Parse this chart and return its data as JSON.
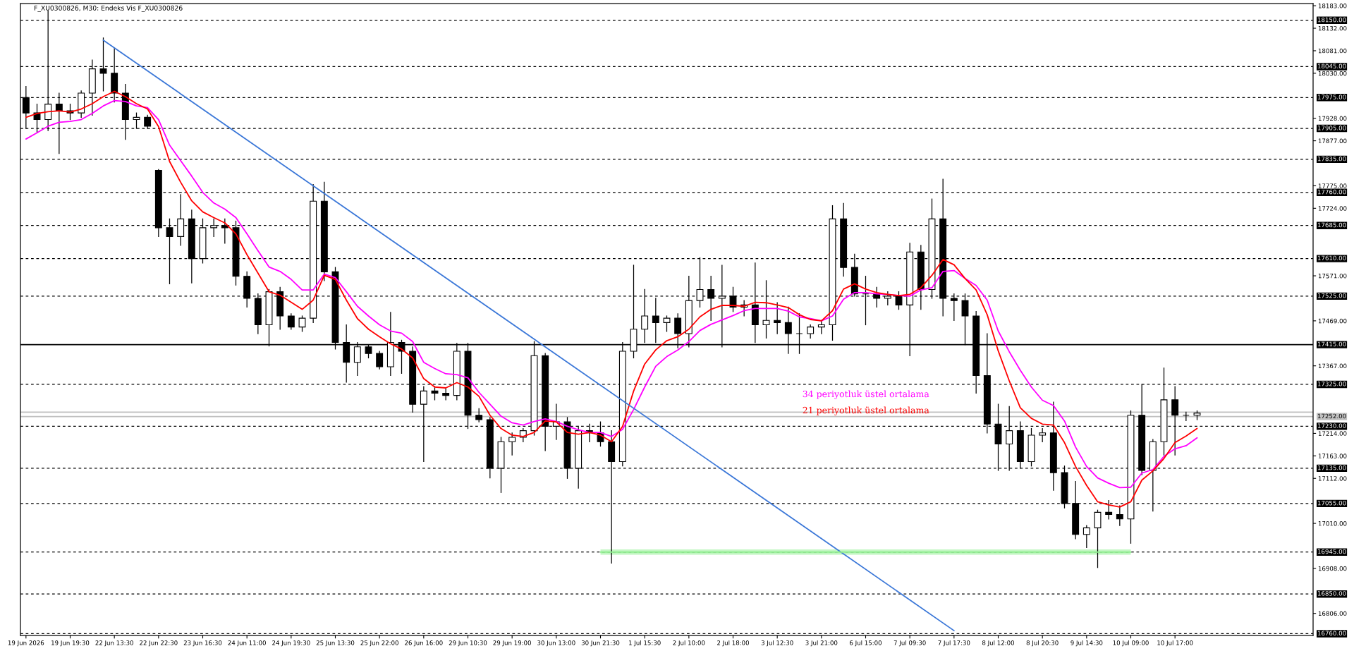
{
  "chart_data": {
    "type": "candlestick",
    "title": "F_XU0300826, M30: Endeks Vis F_XU0300826",
    "color": "#000000",
    "categories": [
      "19 Jun 2026",
      null,
      null,
      null,
      "19 Jun 19:30",
      null,
      null,
      null,
      "22 Jun 13:30",
      null,
      null,
      null,
      "22 Jun 22:30",
      null,
      null,
      null,
      "23 Jun 16:30",
      null,
      null,
      null,
      "24 Jun 11:00",
      null,
      null,
      null,
      "24 Jun 19:30",
      null,
      null,
      null,
      "25 Jun 13:30",
      null,
      null,
      null,
      "25 Jun 22:00",
      null,
      null,
      null,
      "26 Jun 16:00",
      null,
      null,
      null,
      "29 Jun 10:30",
      null,
      null,
      null,
      "29 Jun 19:00",
      null,
      null,
      null,
      "30 Jun 13:00",
      null,
      null,
      null,
      "30 Jun 21:30",
      null,
      null,
      null,
      "1 Jul 15:30",
      null,
      null,
      null,
      "2 Jul 10:00",
      null,
      null,
      null,
      "2 Jul 18:00",
      null,
      null,
      null,
      "3 Jul 12:30",
      null,
      null,
      null,
      "3 Jul 21:00",
      null,
      null,
      null,
      "6 Jul 15:00",
      null,
      null,
      null,
      "7 Jul 09:30",
      null,
      null,
      null,
      "7 Jul 17:30",
      null,
      null,
      null,
      "8 Jul 12:00",
      null,
      null,
      null,
      "8 Jul 20:30",
      null,
      null,
      null,
      "9 Jul 14:30",
      null,
      null,
      null,
      "10 Jul 09:00",
      null,
      null,
      null,
      "10 Jul 17:00",
      null,
      null,
      null,
      null,
      null,
      null,
      null,
      null,
      null,
      null,
      null,
      null
    ],
    "ohlc": [
      [
        17975,
        18000,
        17905,
        17940
      ],
      [
        17940,
        17960,
        17895,
        17925
      ],
      [
        17925,
        18172,
        17900,
        17960
      ],
      [
        17960,
        17985,
        17848,
        17945
      ],
      [
        17945,
        17960,
        17925,
        17940
      ],
      [
        17940,
        17990,
        17930,
        17985
      ],
      [
        17985,
        18060,
        17935,
        18040
      ],
      [
        18040,
        18110,
        17990,
        18030
      ],
      [
        18030,
        18087,
        17965,
        17985
      ],
      [
        17985,
        18005,
        17880,
        17925
      ],
      [
        17925,
        17940,
        17905,
        17930
      ],
      [
        17930,
        17935,
        17905,
        17910
      ],
      [
        17810,
        17812,
        17660,
        17680
      ],
      [
        17680,
        17700,
        17553,
        17660
      ],
      [
        17660,
        17755,
        17640,
        17700
      ],
      [
        17700,
        17720,
        17555,
        17610
      ],
      [
        17610,
        17700,
        17600,
        17680
      ],
      [
        17680,
        17700,
        17660,
        17685
      ],
      [
        17685,
        17700,
        17645,
        17680
      ],
      [
        17680,
        17695,
        17550,
        17570
      ],
      [
        17570,
        17580,
        17500,
        17520
      ],
      [
        17520,
        17530,
        17440,
        17460
      ],
      [
        17460,
        17540,
        17412,
        17535
      ],
      [
        17535,
        17545,
        17450,
        17480
      ],
      [
        17480,
        17485,
        17450,
        17455
      ],
      [
        17455,
        17480,
        17445,
        17475
      ],
      [
        17475,
        17778,
        17465,
        17740
      ],
      [
        17740,
        17783,
        17560,
        17580
      ],
      [
        17580,
        17590,
        17405,
        17420
      ],
      [
        17420,
        17460,
        17330,
        17375
      ],
      [
        17375,
        17420,
        17345,
        17410
      ],
      [
        17410,
        17415,
        17385,
        17395
      ],
      [
        17395,
        17400,
        17360,
        17365
      ],
      [
        17365,
        17488,
        17345,
        17420
      ],
      [
        17420,
        17425,
        17350,
        17400
      ],
      [
        17400,
        17410,
        17262,
        17280
      ],
      [
        17280,
        17320,
        17150,
        17310
      ],
      [
        17310,
        17320,
        17290,
        17305
      ],
      [
        17305,
        17315,
        17290,
        17300
      ],
      [
        17300,
        17418,
        17290,
        17400
      ],
      [
        17400,
        17418,
        17225,
        17255
      ],
      [
        17255,
        17270,
        17240,
        17245
      ],
      [
        17245,
        17250,
        17113,
        17135
      ],
      [
        17135,
        17205,
        17080,
        17195
      ],
      [
        17195,
        17215,
        17165,
        17205
      ],
      [
        17205,
        17225,
        17195,
        17220
      ],
      [
        17220,
        17422,
        17210,
        17390
      ],
      [
        17390,
        17395,
        17175,
        17230
      ],
      [
        17230,
        17280,
        17200,
        17240
      ],
      [
        17240,
        17250,
        17112,
        17135
      ],
      [
        17135,
        17230,
        17090,
        17220
      ],
      [
        17220,
        17235,
        17195,
        17215
      ],
      [
        17215,
        17240,
        17185,
        17195
      ],
      [
        17195,
        17220,
        16920,
        17150
      ],
      [
        17150,
        17420,
        17140,
        17400
      ],
      [
        17400,
        17595,
        17385,
        17450
      ],
      [
        17450,
        17540,
        17420,
        17480
      ],
      [
        17480,
        17520,
        17420,
        17465
      ],
      [
        17465,
        17480,
        17445,
        17475
      ],
      [
        17475,
        17485,
        17408,
        17440
      ],
      [
        17440,
        17570,
        17410,
        17515
      ],
      [
        17515,
        17612,
        17500,
        17540
      ],
      [
        17540,
        17570,
        17470,
        17520
      ],
      [
        17520,
        17595,
        17410,
        17525
      ],
      [
        17525,
        17545,
        17490,
        17500
      ],
      [
        17500,
        17515,
        17480,
        17505
      ],
      [
        17505,
        17600,
        17420,
        17460
      ],
      [
        17460,
        17560,
        17430,
        17470
      ],
      [
        17470,
        17510,
        17440,
        17465
      ],
      [
        17465,
        17500,
        17395,
        17440
      ],
      [
        17440,
        17485,
        17395,
        17440
      ],
      [
        17440,
        17460,
        17430,
        17455
      ],
      [
        17455,
        17470,
        17440,
        17460
      ],
      [
        17460,
        17730,
        17425,
        17700
      ],
      [
        17700,
        17735,
        17570,
        17590
      ],
      [
        17590,
        17620,
        17525,
        17530
      ],
      [
        17530,
        17570,
        17460,
        17530
      ],
      [
        17530,
        17545,
        17500,
        17520
      ],
      [
        17520,
        17535,
        17505,
        17525
      ],
      [
        17525,
        17535,
        17495,
        17505
      ],
      [
        17505,
        17645,
        17390,
        17625
      ],
      [
        17625,
        17640,
        17495,
        17540
      ],
      [
        17540,
        17745,
        17520,
        17700
      ],
      [
        17700,
        17790,
        17480,
        17520
      ],
      [
        17520,
        17530,
        17470,
        17515
      ],
      [
        17515,
        17530,
        17415,
        17480
      ],
      [
        17480,
        17490,
        17305,
        17345
      ],
      [
        17345,
        17440,
        17215,
        17235
      ],
      [
        17235,
        17280,
        17130,
        17190
      ],
      [
        17190,
        17275,
        17130,
        17220
      ],
      [
        17220,
        17240,
        17135,
        17150
      ],
      [
        17150,
        17225,
        17140,
        17210
      ],
      [
        17210,
        17225,
        17195,
        17215
      ],
      [
        17215,
        17285,
        17085,
        17125
      ],
      [
        17125,
        17140,
        17045,
        17055
      ],
      [
        17055,
        17105,
        16975,
        16985
      ],
      [
        16985,
        17005,
        16955,
        17000
      ],
      [
        17000,
        17040,
        16910,
        17035
      ],
      [
        17035,
        17062,
        17020,
        17030
      ],
      [
        17030,
        17050,
        17005,
        17020
      ],
      [
        17020,
        17265,
        16965,
        17255
      ],
      [
        17255,
        17325,
        17120,
        17130
      ],
      [
        17130,
        17200,
        17038,
        17195
      ],
      [
        17195,
        17362,
        17165,
        17290
      ],
      [
        17290,
        17320,
        17165,
        17255
      ],
      [
        17255,
        17262,
        17243,
        17255
      ],
      [
        17255,
        17265,
        17245,
        17260
      ],
      null,
      null,
      null,
      null,
      null,
      null,
      null,
      null,
      null,
      null
    ],
    "series": [
      {
        "name": "34 periyotluk üstel ortalama",
        "type": "line",
        "color": "#ff00ff",
        "values": [
          17881,
          17895,
          17910,
          17919,
          17921,
          17925,
          17939,
          17956,
          17968,
          17966,
          17956,
          17952,
          17925,
          17867,
          17832,
          17797,
          17760,
          17736,
          17722,
          17703,
          17666,
          17628,
          17591,
          17581,
          17563,
          17539,
          17539,
          17575,
          17567,
          17535,
          17502,
          17480,
          17460,
          17446,
          17441,
          17422,
          17375,
          17361,
          17349,
          17347,
          17340,
          17307,
          17280,
          17253,
          17238,
          17233,
          17241,
          17247,
          17241,
          17230,
          17222,
          17216,
          17216,
          17207,
          17223,
          17268,
          17319,
          17366,
          17388,
          17403,
          17422,
          17447,
          17461,
          17471,
          17481,
          17492,
          17497,
          17497,
          17497,
          17491,
          17478,
          17474,
          17469,
          17480,
          17518,
          17533,
          17533,
          17530,
          17529,
          17526,
          17525,
          17539,
          17544,
          17581,
          17583,
          17565,
          17549,
          17516,
          17446,
          17399,
          17357,
          17319,
          17289,
          17277,
          17242,
          17183,
          17139,
          17113,
          17101,
          17091,
          17092,
          17124,
          17132,
          17162,
          17179,
          17186,
          17204,
          null,
          null,
          null,
          null,
          null,
          null,
          null,
          null,
          null,
          null
        ]
      },
      {
        "name": "21 periyotluk üstel ortalama",
        "type": "line",
        "color": "#ff0000",
        "values": [
          17930,
          17939,
          17943,
          17945,
          17942,
          17949,
          17961,
          17977,
          17989,
          17977,
          17961,
          17949,
          17909,
          17830,
          17783,
          17741,
          17716,
          17703,
          17691,
          17666,
          17619,
          17577,
          17535,
          17527,
          17511,
          17495,
          17516,
          17572,
          17563,
          17516,
          17474,
          17450,
          17433,
          17417,
          17405,
          17385,
          17338,
          17319,
          17317,
          17329,
          17319,
          17298,
          17255,
          17225,
          17210,
          17207,
          17216,
          17242,
          17240,
          17216,
          17212,
          17216,
          17210,
          17195,
          17230,
          17310,
          17371,
          17403,
          17424,
          17433,
          17450,
          17478,
          17495,
          17504,
          17504,
          17502,
          17511,
          17510,
          17505,
          17499,
          17483,
          17472,
          17469,
          17492,
          17541,
          17553,
          17541,
          17533,
          17529,
          17526,
          17529,
          17544,
          17572,
          17608,
          17596,
          17565,
          17539,
          17483,
          17401,
          17333,
          17272,
          17248,
          17235,
          17233,
          17193,
          17139,
          17096,
          17059,
          17052,
          17047,
          17059,
          17108,
          17129,
          17157,
          17193,
          17208,
          17225,
          null,
          null,
          null,
          null,
          null,
          null,
          null,
          null,
          null,
          null
        ]
      },
      {
        "type": "line",
        "color": "#3c78d8",
        "values": [
          null,
          null,
          null,
          null,
          null,
          null,
          null,
          18105,
          null,
          null,
          null,
          null,
          null,
          null,
          null,
          null,
          null,
          null,
          null,
          null,
          null,
          null,
          null,
          null,
          null,
          null,
          null,
          null,
          null,
          null,
          null,
          null,
          null,
          null,
          null,
          null,
          null,
          null,
          null,
          null,
          null,
          null,
          null,
          null,
          null,
          null,
          null,
          null,
          null,
          null,
          null,
          null,
          null,
          null,
          null,
          null,
          null,
          null,
          null,
          null,
          null,
          null,
          null,
          null,
          null,
          null,
          null,
          null,
          null,
          null,
          null,
          null,
          null,
          null,
          null,
          null,
          null,
          null,
          null,
          null,
          null,
          null,
          null,
          null,
          16767,
          null,
          null,
          null,
          null,
          null,
          null,
          null,
          null,
          null,
          null,
          null,
          null,
          null,
          null,
          null,
          null,
          null,
          null,
          null,
          null,
          null,
          null,
          null,
          null,
          null,
          null,
          null,
          null,
          null,
          null,
          null,
          null
        ]
      },
      {
        "type": "line",
        "color": "#90ee90",
        "values": [
          null,
          null,
          null,
          null,
          null,
          null,
          null,
          null,
          null,
          null,
          null,
          null,
          null,
          null,
          null,
          null,
          null,
          null,
          null,
          null,
          null,
          null,
          null,
          null,
          null,
          null,
          null,
          null,
          null,
          null,
          null,
          null,
          null,
          null,
          null,
          null,
          null,
          null,
          null,
          null,
          null,
          null,
          null,
          null,
          null,
          null,
          null,
          null,
          null,
          null,
          null,
          null,
          16945,
          null,
          null,
          null,
          null,
          null,
          null,
          null,
          null,
          null,
          null,
          null,
          null,
          null,
          null,
          null,
          null,
          null,
          null,
          null,
          null,
          null,
          null,
          null,
          null,
          null,
          null,
          null,
          null,
          null,
          null,
          null,
          null,
          null,
          null,
          null,
          null,
          null,
          null,
          null,
          null,
          null,
          null,
          null,
          null,
          null,
          null,
          null,
          16945,
          null,
          null,
          null,
          null,
          null,
          null,
          null,
          null,
          null,
          null,
          null,
          null,
          null,
          null,
          null,
          null
        ],
        "lower": [
          null,
          null,
          null,
          null,
          null,
          null,
          null,
          null,
          null,
          null,
          null,
          null,
          null,
          null,
          null,
          null,
          null,
          null,
          null,
          null,
          null,
          null,
          null,
          null,
          null,
          null,
          null,
          null,
          null,
          null,
          null,
          null,
          null,
          null,
          null,
          null,
          null,
          null,
          null,
          null,
          null,
          null,
          null,
          null,
          null,
          null,
          null,
          null,
          null,
          null,
          null,
          null,
          16939,
          null,
          null,
          null,
          null,
          null,
          null,
          null,
          null,
          null,
          null,
          null,
          null,
          null,
          null,
          null,
          null,
          null,
          null,
          null,
          null,
          null,
          null,
          null,
          null,
          null,
          null,
          null,
          null,
          null,
          null,
          null,
          null,
          null,
          null,
          null,
          null,
          null,
          null,
          null,
          null,
          null,
          null,
          null,
          null,
          null,
          null,
          null,
          16939,
          null,
          null,
          null,
          null,
          null,
          null,
          null,
          null,
          null,
          null,
          null,
          null,
          null,
          null,
          null,
          null
        ],
        "upper": [
          null,
          null,
          null,
          null,
          null,
          null,
          null,
          null,
          null,
          null,
          null,
          null,
          null,
          null,
          null,
          null,
          null,
          null,
          null,
          null,
          null,
          null,
          null,
          null,
          null,
          null,
          null,
          null,
          null,
          null,
          null,
          null,
          null,
          null,
          null,
          null,
          null,
          null,
          null,
          null,
          null,
          null,
          null,
          null,
          null,
          null,
          null,
          null,
          null,
          null,
          null,
          null,
          16951,
          null,
          null,
          null,
          null,
          null,
          null,
          null,
          null,
          null,
          null,
          null,
          null,
          null,
          null,
          null,
          null,
          null,
          null,
          null,
          null,
          null,
          null,
          null,
          null,
          null,
          null,
          null,
          null,
          null,
          null,
          null,
          null,
          null,
          null,
          null,
          null,
          null,
          null,
          null,
          null,
          null,
          null,
          null,
          null,
          null,
          null,
          null,
          16951,
          null,
          null,
          null,
          null,
          null,
          null,
          null,
          null,
          null,
          null,
          null,
          null,
          null,
          null,
          null,
          null
        ]
      }
    ],
    "ylim": [
      16756,
      18188
    ],
    "yticks": [
      {
        "value": 18183,
        "label": "18183.00"
      },
      {
        "value": 18132,
        "label": "18132.00"
      },
      {
        "value": 18081,
        "label": "18081.00"
      },
      {
        "value": 18030,
        "label": "18030.00"
      },
      {
        "value": 17928,
        "label": "17928.00"
      },
      {
        "value": 17877,
        "label": "17877.00"
      },
      {
        "value": 17775,
        "label": "17775.00"
      },
      {
        "value": 17724,
        "label": "17724.00"
      },
      {
        "value": 17571,
        "label": "17571.00"
      },
      {
        "value": 17469,
        "label": "17469.00"
      },
      {
        "value": 17367,
        "label": "17367.00"
      },
      {
        "value": 17214,
        "label": "17214.00"
      },
      {
        "value": 17163,
        "label": "17163.00"
      },
      {
        "value": 17112,
        "label": "17112.00"
      },
      {
        "value": 17010,
        "label": "17010.00"
      },
      {
        "value": 16908,
        "label": "16908.00"
      },
      {
        "value": 16806,
        "label": "16806.00"
      }
    ],
    "ref_lines": [
      {
        "axis": "y",
        "value": 18150,
        "label": "18150.00",
        "color": "#000000",
        "line_style": "dashed"
      },
      {
        "axis": "y",
        "value": 18045,
        "label": "18045.00",
        "color": "#000000",
        "line_style": "dashed"
      },
      {
        "axis": "y",
        "value": 17975,
        "label": "17975.00",
        "color": "#000000",
        "line_style": "dashed"
      },
      {
        "axis": "y",
        "value": 17905,
        "label": "17905.00",
        "color": "#000000",
        "line_style": "dashed"
      },
      {
        "axis": "y",
        "value": 17835,
        "label": "17835.00",
        "color": "#000000",
        "line_style": "dashed"
      },
      {
        "axis": "y",
        "value": 17760,
        "label": "17760.00",
        "color": "#000000",
        "line_style": "dashed"
      },
      {
        "axis": "y",
        "value": 17685,
        "label": "17685.00",
        "color": "#000000",
        "line_style": "dashed"
      },
      {
        "axis": "y",
        "value": 17610,
        "label": "17610.00",
        "color": "#000000",
        "line_style": "dashed"
      },
      {
        "axis": "y",
        "value": 17525,
        "label": "17525.00",
        "color": "#000000",
        "line_style": "dashed"
      },
      {
        "axis": "y",
        "value": 17415,
        "label": "17415.00",
        "color": "#000000",
        "line_style": "solid"
      },
      {
        "axis": "y",
        "value": 17325,
        "label": "17325.00",
        "color": "#000000",
        "line_style": "dashed"
      },
      {
        "axis": "y",
        "value": 17262,
        "label": null,
        "color": "#c0c0c0",
        "line_style": "solid"
      },
      {
        "axis": "y",
        "value": 17252,
        "label": "17252.00",
        "color": "#c0c0c0",
        "line_style": "solid"
      },
      {
        "axis": "y",
        "value": 17230,
        "label": "17230.00",
        "color": "#000000",
        "line_style": "dashed"
      },
      {
        "axis": "y",
        "value": 17135,
        "label": "17135.00",
        "color": "#000000",
        "line_style": "dashed"
      },
      {
        "axis": "y",
        "value": 17055,
        "label": "17055.00",
        "color": "#000000",
        "line_style": "dashed"
      },
      {
        "axis": "y",
        "value": 16945,
        "label": "16945.00",
        "color": "#000000",
        "line_style": "dashed"
      },
      {
        "axis": "y",
        "value": 16850,
        "label": "16850.00",
        "color": "#000000",
        "line_style": "dashed"
      },
      {
        "axis": "y",
        "value": 16760,
        "label": "16760.00",
        "color": "#000000",
        "line_style": "dashed"
      }
    ]
  }
}
